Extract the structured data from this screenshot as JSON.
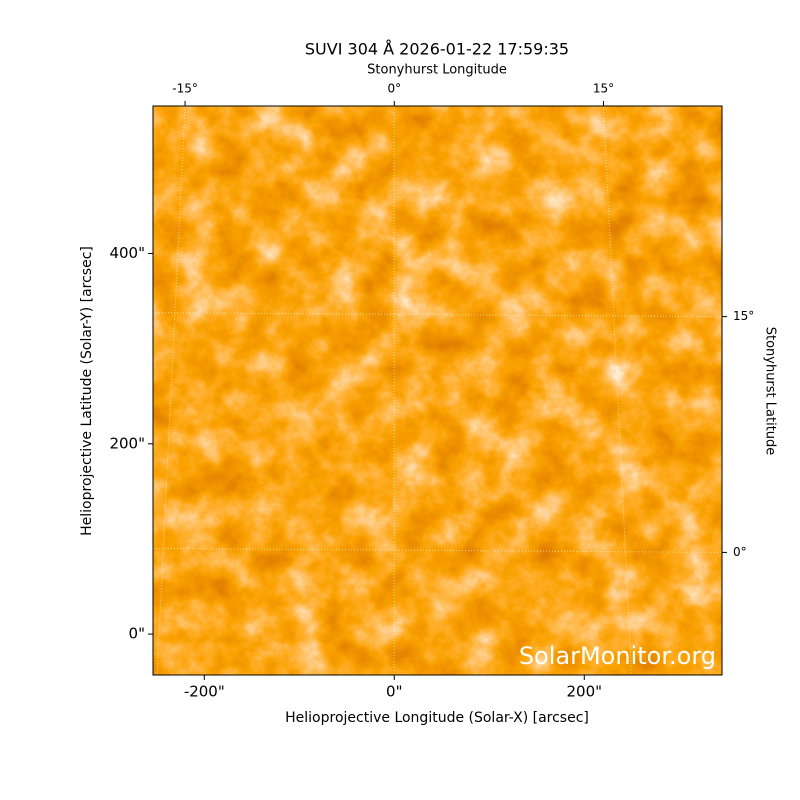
{
  "chart_data": {
    "type": "image",
    "title": "SUVI 304 Å 2026-01-22 17:59:35",
    "xlabel": "Helioprojective Longitude (Solar-X) [arcsec]",
    "ylabel": "Helioprojective Latitude (Solar-Y) [arcsec]",
    "x2label": "Stonyhurst Longitude",
    "y2label": "Stonyhurst Latitude",
    "watermark": "SolarMonitor.org",
    "xlim": [
      -254,
      345
    ],
    "ylim": [
      -43,
      555
    ],
    "xticks": [
      {
        "value": -200,
        "label": "-200\""
      },
      {
        "value": 0,
        "label": "0\""
      },
      {
        "value": 200,
        "label": "200\""
      }
    ],
    "yticks": [
      {
        "value": 0,
        "label": "0\""
      },
      {
        "value": 200,
        "label": "200\""
      },
      {
        "value": 400,
        "label": "400\""
      }
    ],
    "x2lim": [
      -17.3,
      23.5
    ],
    "x2ticks": [
      {
        "value": -15,
        "label": "-15°"
      },
      {
        "value": 0,
        "label": "0°"
      },
      {
        "value": 15,
        "label": "15°"
      }
    ],
    "y2lim": [
      -7.8,
      28.4
    ],
    "y2ticks": [
      {
        "value": 0,
        "label": "0°"
      },
      {
        "value": 15,
        "label": "15°"
      }
    ],
    "grid": true
  }
}
